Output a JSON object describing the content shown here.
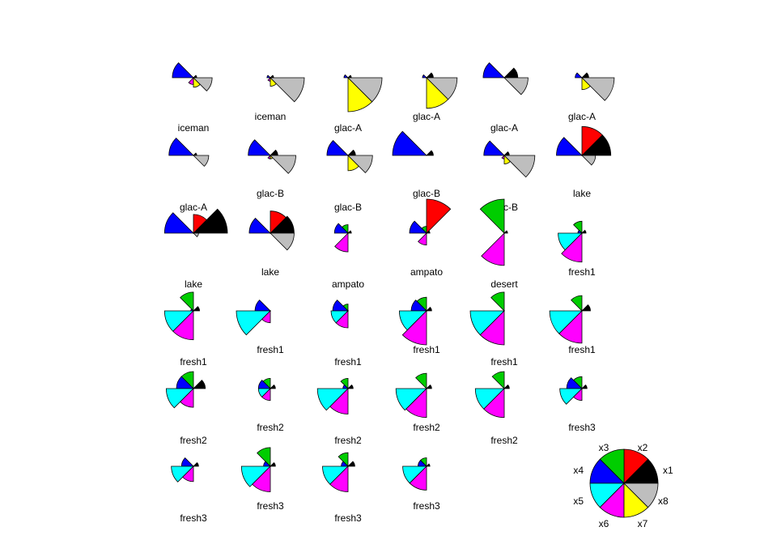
{
  "chart_data": {
    "type": "star segments",
    "variables": [
      "x1",
      "x2",
      "x3",
      "x4",
      "x5",
      "x6",
      "x7",
      "x8"
    ],
    "colors": [
      "#000000",
      "#ff0000",
      "#00cd00",
      "#0000ff",
      "#00ffff",
      "#ff00ff",
      "#ffff00",
      "#bebebe"
    ],
    "key": {
      "labels": [
        "x1",
        "x2",
        "x3",
        "x4",
        "x5",
        "x6",
        "x7",
        "x8"
      ]
    },
    "items": [
      {
        "label": "iceman",
        "values": [
          0.1,
          0.0,
          0.0,
          0.62,
          0.0,
          0.2,
          0.28,
          0.55
        ]
      },
      {
        "label": "iceman",
        "values": [
          0.1,
          0.0,
          0.0,
          0.1,
          0.0,
          0.1,
          0.25,
          1.0
        ]
      },
      {
        "label": "glac-A",
        "values": [
          0.1,
          0.0,
          0.0,
          0.12,
          0.0,
          0.0,
          1.0,
          1.0
        ]
      },
      {
        "label": "glac-A",
        "values": [
          0.2,
          0.0,
          0.0,
          0.12,
          0.0,
          0.0,
          0.9,
          0.9
        ]
      },
      {
        "label": "glac-A",
        "values": [
          0.4,
          0.0,
          0.0,
          0.62,
          0.0,
          0.0,
          0.0,
          0.7
        ]
      },
      {
        "label": "glac-A",
        "values": [
          0.2,
          0.0,
          0.0,
          0.2,
          0.0,
          0.0,
          0.35,
          0.95
        ]
      },
      {
        "label": "glac-A",
        "values": [
          0.1,
          0.0,
          0.0,
          0.72,
          0.0,
          0.0,
          0.0,
          0.45
        ]
      },
      {
        "label": "glac-B",
        "values": [
          0.22,
          0.0,
          0.0,
          0.65,
          0.0,
          0.1,
          0.1,
          0.75
        ]
      },
      {
        "label": "glac-B",
        "values": [
          0.22,
          0.0,
          0.0,
          0.62,
          0.0,
          0.0,
          0.45,
          0.72
        ]
      },
      {
        "label": "glac-B",
        "values": [
          0.2,
          0.0,
          0.0,
          1.0,
          0.0,
          0.0,
          0.0,
          0.0
        ]
      },
      {
        "label": "glac-B",
        "values": [
          0.15,
          0.0,
          0.0,
          0.6,
          0.0,
          0.1,
          0.25,
          0.9
        ]
      },
      {
        "label": "lake",
        "values": [
          0.85,
          0.85,
          0.0,
          0.75,
          0.0,
          0.0,
          0.0,
          0.4
        ]
      },
      {
        "label": "lake",
        "values": [
          1.0,
          0.55,
          0.0,
          0.85,
          0.0,
          0.0,
          0.0,
          0.15
        ]
      },
      {
        "label": "lake",
        "values": [
          0.7,
          0.65,
          0.0,
          0.62,
          0.0,
          0.0,
          0.0,
          0.7
        ]
      },
      {
        "label": "ampato",
        "values": [
          0.1,
          0.0,
          0.25,
          0.4,
          0.0,
          0.55,
          0.0,
          0.0
        ]
      },
      {
        "label": "ampato",
        "values": [
          0.1,
          1.0,
          0.2,
          0.5,
          0.0,
          0.35,
          0.0,
          0.0
        ]
      },
      {
        "label": "desert",
        "values": [
          0.1,
          0.0,
          1.0,
          0.0,
          0.0,
          0.95,
          0.0,
          0.0
        ]
      },
      {
        "label": "fresh1",
        "values": [
          0.12,
          0.0,
          0.35,
          0.12,
          0.7,
          0.85,
          0.0,
          0.0
        ]
      },
      {
        "label": "fresh1",
        "values": [
          0.18,
          0.0,
          0.55,
          0.08,
          0.85,
          0.85,
          0.0,
          0.0
        ]
      },
      {
        "label": "fresh1",
        "values": [
          0.0,
          0.0,
          0.0,
          0.45,
          1.0,
          0.35,
          0.0,
          0.0
        ]
      },
      {
        "label": "fresh1",
        "values": [
          0.0,
          0.0,
          0.2,
          0.45,
          0.5,
          0.5,
          0.0,
          0.0
        ]
      },
      {
        "label": "fresh1",
        "values": [
          0.15,
          0.0,
          0.4,
          0.45,
          0.8,
          1.0,
          0.0,
          0.0
        ]
      },
      {
        "label": "fresh1",
        "values": [
          0.0,
          0.0,
          0.55,
          0.0,
          1.0,
          1.0,
          0.0,
          0.0
        ]
      },
      {
        "label": "fresh1",
        "values": [
          0.25,
          0.0,
          0.45,
          0.0,
          0.95,
          0.95,
          0.0,
          0.0
        ]
      },
      {
        "label": "fresh2",
        "values": [
          0.35,
          0.0,
          0.5,
          0.5,
          0.8,
          0.55,
          0.0,
          0.0
        ]
      },
      {
        "label": "fresh2",
        "values": [
          0.15,
          0.0,
          0.3,
          0.35,
          0.35,
          0.35,
          0.0,
          0.0
        ]
      },
      {
        "label": "fresh2",
        "values": [
          0.15,
          0.0,
          0.3,
          0.15,
          0.9,
          0.75,
          0.0,
          0.0
        ]
      },
      {
        "label": "fresh2",
        "values": [
          0.15,
          0.0,
          0.45,
          0.0,
          0.9,
          0.85,
          0.0,
          0.0
        ]
      },
      {
        "label": "fresh2",
        "values": [
          0.15,
          0.0,
          0.5,
          0.0,
          0.85,
          0.85,
          0.0,
          0.0
        ]
      },
      {
        "label": "fresh3",
        "values": [
          0.15,
          0.0,
          0.35,
          0.45,
          0.65,
          0.35,
          0.0,
          0.0
        ]
      },
      {
        "label": "fresh3",
        "values": [
          0.15,
          0.0,
          0.0,
          0.35,
          0.65,
          0.45,
          0.0,
          0.0
        ]
      },
      {
        "label": "fresh3",
        "values": [
          0.15,
          0.0,
          0.55,
          0.2,
          0.85,
          0.75,
          0.0,
          0.0
        ]
      },
      {
        "label": "fresh3",
        "values": [
          0.2,
          0.0,
          0.4,
          0.2,
          0.75,
          0.75,
          0.0,
          0.0
        ]
      },
      {
        "label": "fresh3",
        "values": [
          0.1,
          0.0,
          0.25,
          0.25,
          0.7,
          0.7,
          0.0,
          0.0
        ]
      }
    ]
  }
}
